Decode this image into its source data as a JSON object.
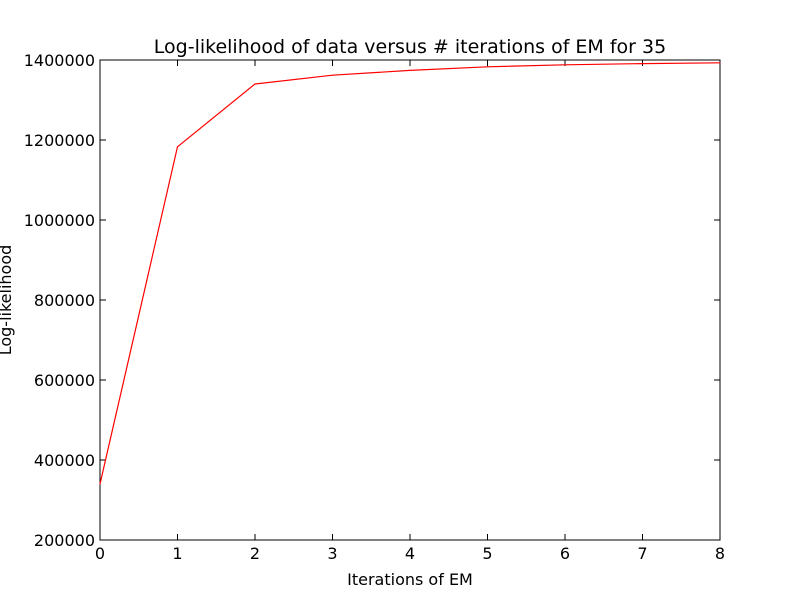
{
  "chart_data": {
    "type": "line",
    "title": "Log-likelihood of data versus # iterations of EM for 35",
    "xlabel": "Iterations of EM",
    "ylabel": "Log-likelihood",
    "xlim": [
      0,
      8
    ],
    "ylim": [
      200000,
      1400000
    ],
    "x_ticks": [
      "0",
      "1",
      "2",
      "3",
      "4",
      "5",
      "6",
      "7",
      "8"
    ],
    "y_ticks": [
      "200000",
      "400000",
      "600000",
      "800000",
      "1000000",
      "1200000",
      "1400000"
    ],
    "grid": false,
    "series": [
      {
        "color": "#ff0000",
        "x": [
          0,
          1,
          2,
          3,
          4,
          5,
          6,
          7,
          8
        ],
        "y": [
          340000,
          1183000,
          1340000,
          1362000,
          1374000,
          1383000,
          1388000,
          1391000,
          1393000
        ]
      }
    ]
  }
}
